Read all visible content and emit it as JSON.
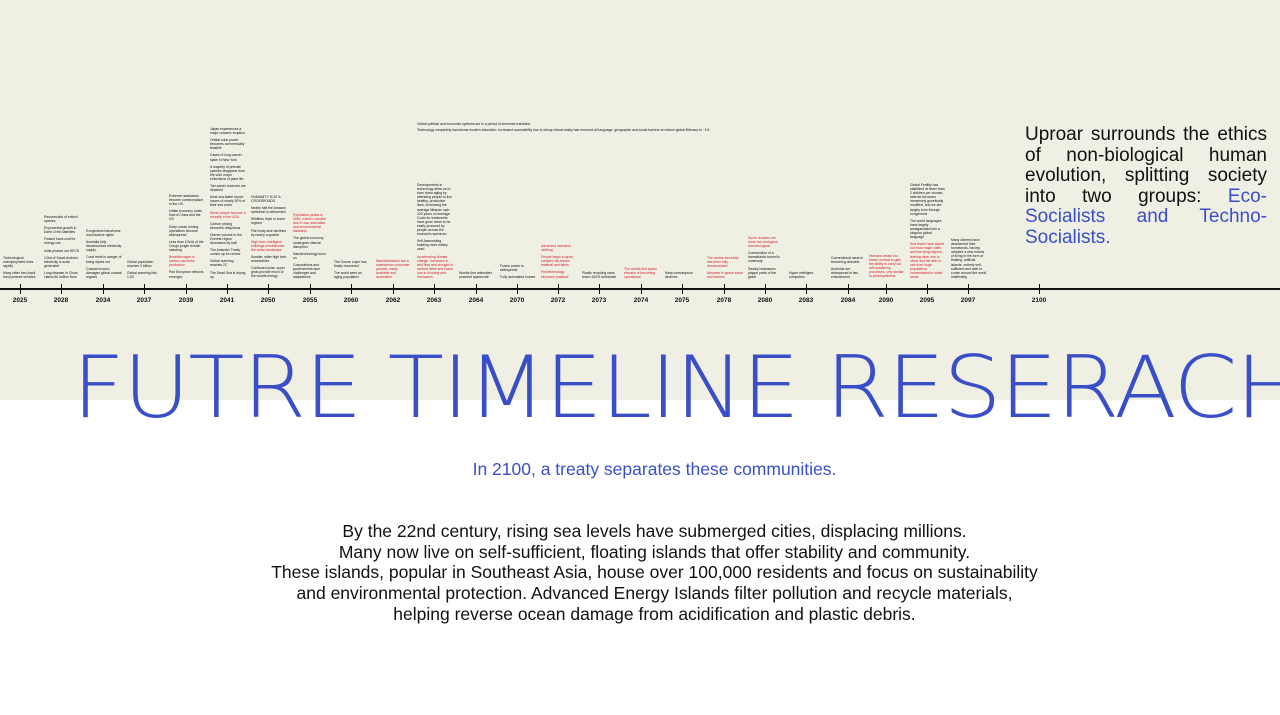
{
  "title": "FUTRE TIMELINE RESERACH",
  "subtitle": "In 2100, a treaty separates these communities.",
  "side_text": {
    "lead": "Uproar surrounds the ethics of non-biological human evolution, splitting society into two groups:",
    "highlight": "Eco-Socialists and Techno-Socialists."
  },
  "body_lines": [
    "By the 22nd century, rising sea levels have submerged cities, displacing millions.",
    "Many now live on self-sufficient, floating islands that offer stability and community.",
    "These islands, popular in Southeast Asia, house over 100,000 residents and focus on sustainability",
    "and environmental protection.  Advanced Energy Islands filter pollution and recycle materials,",
    "helping reverse ocean damage from acidification and plastic debris."
  ],
  "timeline": {
    "years": [
      "2025",
      "2028",
      "2034",
      "2037",
      "2039",
      "2041",
      "2050",
      "2055",
      "2060",
      "2062",
      "2063",
      "2064",
      "2070",
      "2072",
      "2073",
      "2074",
      "2075",
      "2078",
      "2080",
      "2083",
      "2084",
      "2090",
      "2095",
      "2097",
      "2100"
    ],
    "wide_notes": [
      "Global political and economic systems are in a period of immense transition.",
      "Technology completely transforms modern education. Increased accessibility due to cheap virtual reality has removed all language, geographic and social barriers to reduce global illiteracy to ~1%"
    ],
    "columns": [
      {
        "year": "2025",
        "entries": [
          {
            "text": "Technological unemployment rises rapidly",
            "red": false
          },
          {
            "text": "Many cities ban fossil fuel powered vehicles",
            "red": false
          }
        ]
      },
      {
        "year": "2028",
        "entries": [
          {
            "text": "Resurrection of extinct species",
            "red": false
          },
          {
            "text": "Exponential growth in Earth Orbit Satellites",
            "red": false
          },
          {
            "text": "Finland bans coal for energy use",
            "red": false
          },
          {
            "text": "India phases out HFCS",
            "red": false
          },
          {
            "text": "1/3rd of Saudi Arabia's electricity is solar generated",
            "red": false
          },
          {
            "text": "Lung disease in China claims 80 million lives",
            "red": false
          }
        ]
      },
      {
        "year": "2034",
        "entries": [
          {
            "text": "Exogenesis transforms reproductive rights",
            "red": false
          },
          {
            "text": "Australia fully decarbonises electricity supply",
            "red": false
          },
          {
            "text": "Coral reefs in danger of being wiped out",
            "red": false
          },
          {
            "text": "Coastal erosion damages global coastal regions",
            "red": false
          }
        ]
      },
      {
        "year": "2037",
        "entries": [
          {
            "text": "Global population reaches 9 billion",
            "red": false
          },
          {
            "text": "Global warming hits 1.5C",
            "red": false
          }
        ]
      },
      {
        "year": "2039",
        "entries": [
          {
            "text": "Extreme heatwaves become commonplace in the US.",
            "red": false
          },
          {
            "text": "Indian economy rivals that of China and the US",
            "red": false
          },
          {
            "text": "Deep ocean mining operations become widespread",
            "red": false
          },
          {
            "text": "Less than 1/3rds of the Congo jungle remain standing",
            "red": false
          },
          {
            "text": "Breakthroughs in carbon-nanotube production",
            "red": true
          },
          {
            "text": "Pan European network emerges",
            "red": false
          }
        ]
      },
      {
        "year": "2041",
        "entries": [
          {
            "text": "Japan experiences a major volcanic eruption.",
            "red": false
          },
          {
            "text": "Orbital solar power becomes commercially feasible",
            "red": false
          },
          {
            "text": "Cases of lung cancer spike in New York",
            "red": false
          },
          {
            "text": "A majority of primate species disappear from the wild, major extinctions of plant life",
            "red": false
          },
          {
            "text": "Tarr-sands reserves are depleted",
            "red": false
          },
          {
            "text": "Most sea-faster report losses of nearly 30% of their sea cover",
            "red": false
          },
          {
            "text": "White people become a minority in the USA",
            "red": true
          },
          {
            "text": "Carbon pricing becomes ubiquitous",
            "red": false
          },
          {
            "text": "Glacier volume in the Everest region decreases by half",
            "red": false
          },
          {
            "text": "The Antarctic Treaty comes up for review",
            "red": false
          },
          {
            "text": "Global warming reaches 2C",
            "red": false
          },
          {
            "text": "The Dead Sea is drying up",
            "red": false
          }
        ]
      },
      {
        "year": "2050",
        "entries": [
          {
            "text": "HUMANITY IS AT A CROSSROADS",
            "red": false
          },
          {
            "text": "Nearly half the Amazon rainforest is deforested",
            "red": false
          },
          {
            "text": "Wildfires triple in some regions",
            "red": false
          },
          {
            "text": "Fish body size declines by nearly a quarter",
            "red": false
          },
          {
            "text": "High-tech, intelligent buildings revolutionise the urban landscape",
            "red": true
          },
          {
            "text": "Smaller, safer high tech automobiles",
            "red": false
          },
          {
            "text": "Continued solar, super grids provide much of the worlds energy",
            "red": false
          }
        ]
      },
      {
        "year": "2055",
        "entries": [
          {
            "text": "Population peaks in 2050, where a decline due to war, starvation and environmental disasters",
            "red": true
          },
          {
            "text": "The global economy undergoes intense disruption",
            "red": false
          },
          {
            "text": "Nanotechnology turns on",
            "red": false
          },
          {
            "text": "Corporations and governments face challenges and adaptations",
            "red": false
          }
        ]
      },
      {
        "year": "2060",
        "entries": [
          {
            "text": "The Ozone Layer has finally recovered",
            "red": false
          },
          {
            "text": "The world sees an aging population",
            "red": false
          }
        ]
      },
      {
        "year": "2062",
        "entries": [
          {
            "text": "Nanofabricators are a mainstream consumer product, easily available and accessible",
            "red": true
          }
        ]
      },
      {
        "year": "2063",
        "entries": [
          {
            "text": "Developments in technology allow us to slow down aging by attending people to live healthy, productive lives, increasing the average lifespan upto 120 years on average. Costs for treatments have gone down to be easily procured by people across the economic spectrum",
            "red": false
          },
          {
            "text": "Self Assembling building more widely used",
            "red": false
          },
          {
            "text": "Accelerating climate change. Increases in wild fires and drought in several cities and towns due to flooding and hurricanes.",
            "red": true
          }
        ]
      },
      {
        "year": "2064",
        "entries": [
          {
            "text": "Worlds first antimatter powered spacecraft",
            "red": false
          }
        ]
      },
      {
        "year": "2070",
        "entries": [
          {
            "text": "Fusion power is widespread",
            "red": false
          },
          {
            "text": "Fully automated homes",
            "red": false
          }
        ]
      },
      {
        "year": "2072",
        "entries": [
          {
            "text": "Advanced nanotech clothing",
            "red": true
          },
          {
            "text": "People begin to grow complex bio-based material and fabric",
            "red": true
          },
          {
            "text": "Pyrotechnology becomes practical",
            "red": true
          }
        ]
      },
      {
        "year": "2073",
        "entries": [
          {
            "text": "Plastic recycling rates reach 100% worldwide",
            "red": false
          }
        ]
      },
      {
        "year": "2074",
        "entries": [
          {
            "text": "The worlds first space elevator is becoming operational",
            "red": true
          }
        ]
      },
      {
        "year": "2075",
        "entries": [
          {
            "text": "Meat consumption declines",
            "red": false
          }
        ]
      },
      {
        "year": "2078",
        "entries": [
          {
            "text": "The worlds electricity has been fully decarbonised",
            "red": true
          },
          {
            "text": "Advance in space travel and tourism",
            "red": true
          }
        ]
      },
      {
        "year": "2080",
        "entries": [
          {
            "text": "Some humans are more non-biological than biological",
            "red": true
          },
          {
            "text": "Construction of a transatlantic tunnel is underway",
            "red": false
          },
          {
            "text": "Deadly heatwaves plague parts of the globe",
            "red": false
          }
        ]
      },
      {
        "year": "2083",
        "entries": [
          {
            "text": "Hyper intelligent computers",
            "red": false
          }
        ]
      },
      {
        "year": "2084",
        "entries": [
          {
            "text": "Conventional meat is becoming obsolete",
            "red": false
          },
          {
            "text": "Androids are widespread in law enforcement",
            "red": false
          }
        ]
      },
      {
        "year": "2090",
        "entries": [
          {
            "text": "Humans create bio-based vertical to gain the ability to carry out self-sustaining processes, very similar to photosynthesis",
            "red": true
          }
        ]
      },
      {
        "year": "2095",
        "entries": [
          {
            "text": "Global Fertility has stabilised at fewer than 2 children per woman, internet becomes immensely genetically modified, and we are largely born through exogenesis",
            "red": false
          },
          {
            "text": "The world languages have largely amalgamated into a singular global language",
            "red": false
          },
          {
            "text": "Sea levels have wiped out most major cities and low lying regions, leaving other due to stone and fall with in rain from huge populations concentrated in small areas",
            "red": true
          }
        ]
      },
      {
        "year": "2097",
        "entries": [
          {
            "text": "Many citizens have abandoned their homelands, having adopted a new means of living in the form of floating, artificial islands, entirely self-sufficient and able to cruise around the world indefinitely",
            "red": false
          }
        ]
      }
    ]
  }
}
